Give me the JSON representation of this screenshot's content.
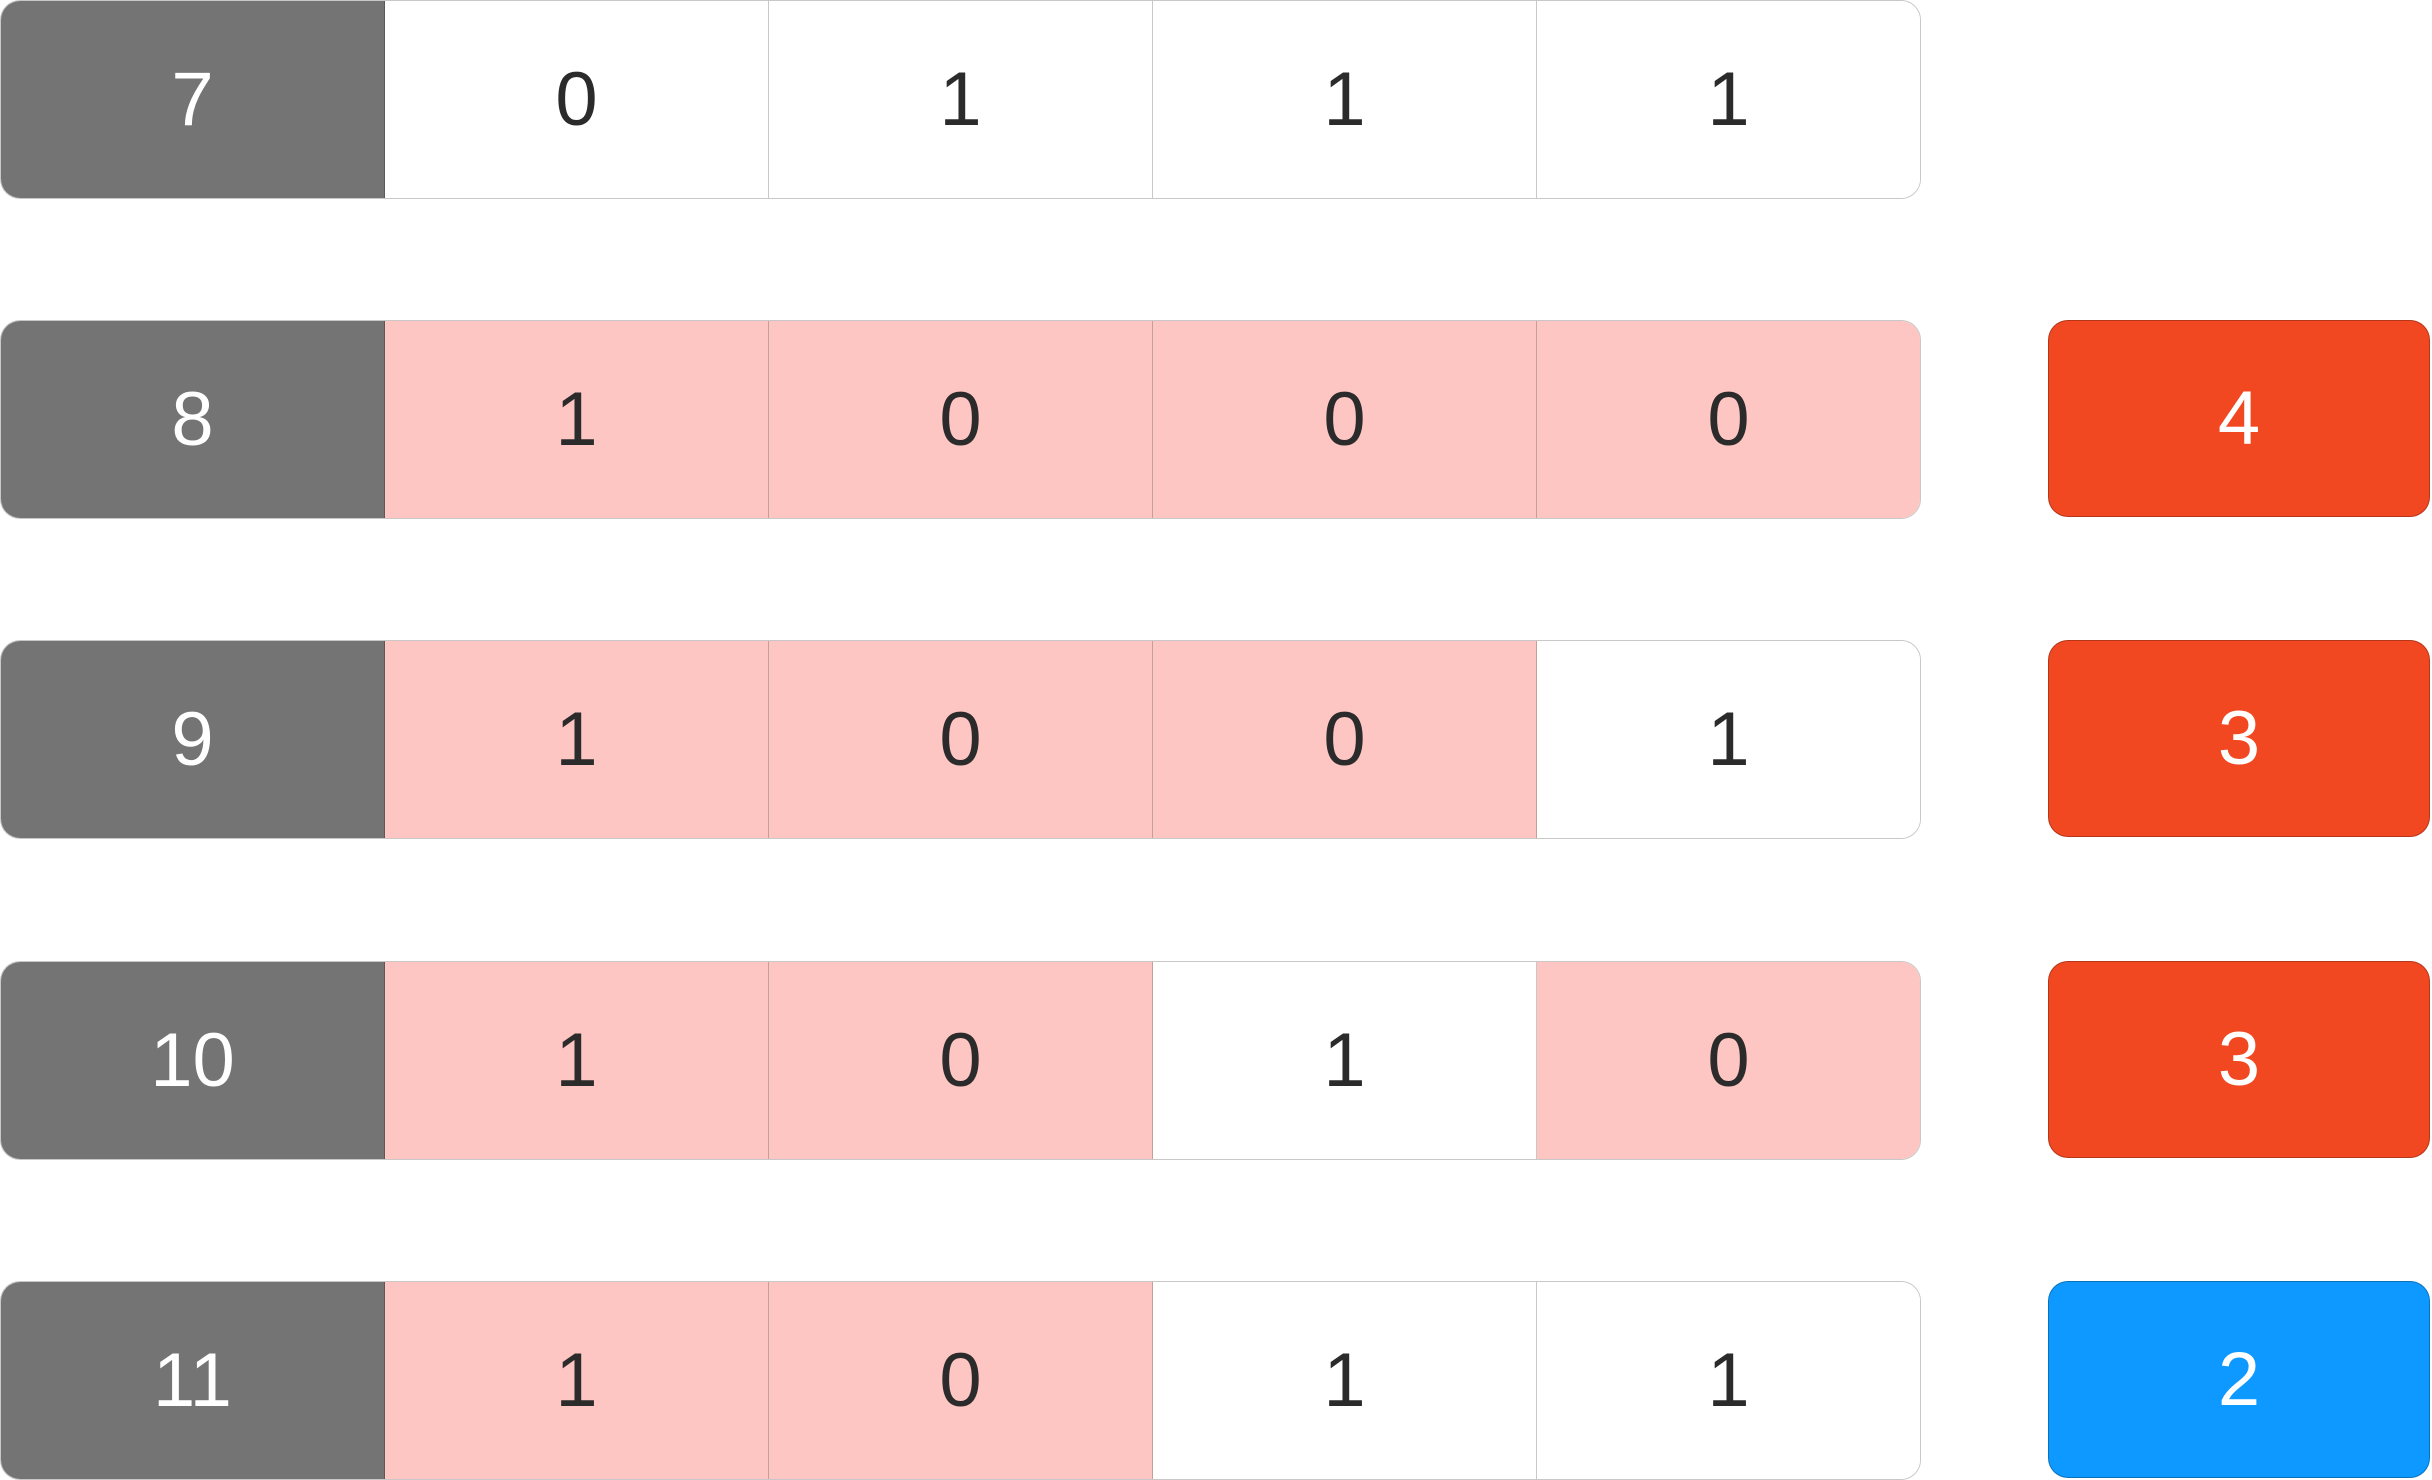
{
  "colors": {
    "label_bg": "#747474",
    "changed_bg": "#fdc6c2",
    "unchanged_bg": "#ffffff",
    "count_high": "#f24822",
    "count_low": "#0d99ff"
  },
  "rows": [
    {
      "label": "7",
      "bits": [
        {
          "value": "0",
          "changed": false
        },
        {
          "value": "1",
          "changed": false
        },
        {
          "value": "1",
          "changed": false
        },
        {
          "value": "1",
          "changed": false
        }
      ],
      "count": null,
      "count_color": null
    },
    {
      "label": "8",
      "bits": [
        {
          "value": "1",
          "changed": true
        },
        {
          "value": "0",
          "changed": true
        },
        {
          "value": "0",
          "changed": true
        },
        {
          "value": "0",
          "changed": true
        }
      ],
      "count": "4",
      "count_color": "#f24822"
    },
    {
      "label": "9",
      "bits": [
        {
          "value": "1",
          "changed": true
        },
        {
          "value": "0",
          "changed": true
        },
        {
          "value": "0",
          "changed": true
        },
        {
          "value": "1",
          "changed": false
        }
      ],
      "count": "3",
      "count_color": "#f24822"
    },
    {
      "label": "10",
      "bits": [
        {
          "value": "1",
          "changed": true
        },
        {
          "value": "0",
          "changed": true
        },
        {
          "value": "1",
          "changed": false
        },
        {
          "value": "0",
          "changed": true
        }
      ],
      "count": "3",
      "count_color": "#f24822"
    },
    {
      "label": "11",
      "bits": [
        {
          "value": "1",
          "changed": true
        },
        {
          "value": "0",
          "changed": true
        },
        {
          "value": "1",
          "changed": false
        },
        {
          "value": "1",
          "changed": false
        }
      ],
      "count": "2",
      "count_color": "#0d99ff"
    }
  ]
}
